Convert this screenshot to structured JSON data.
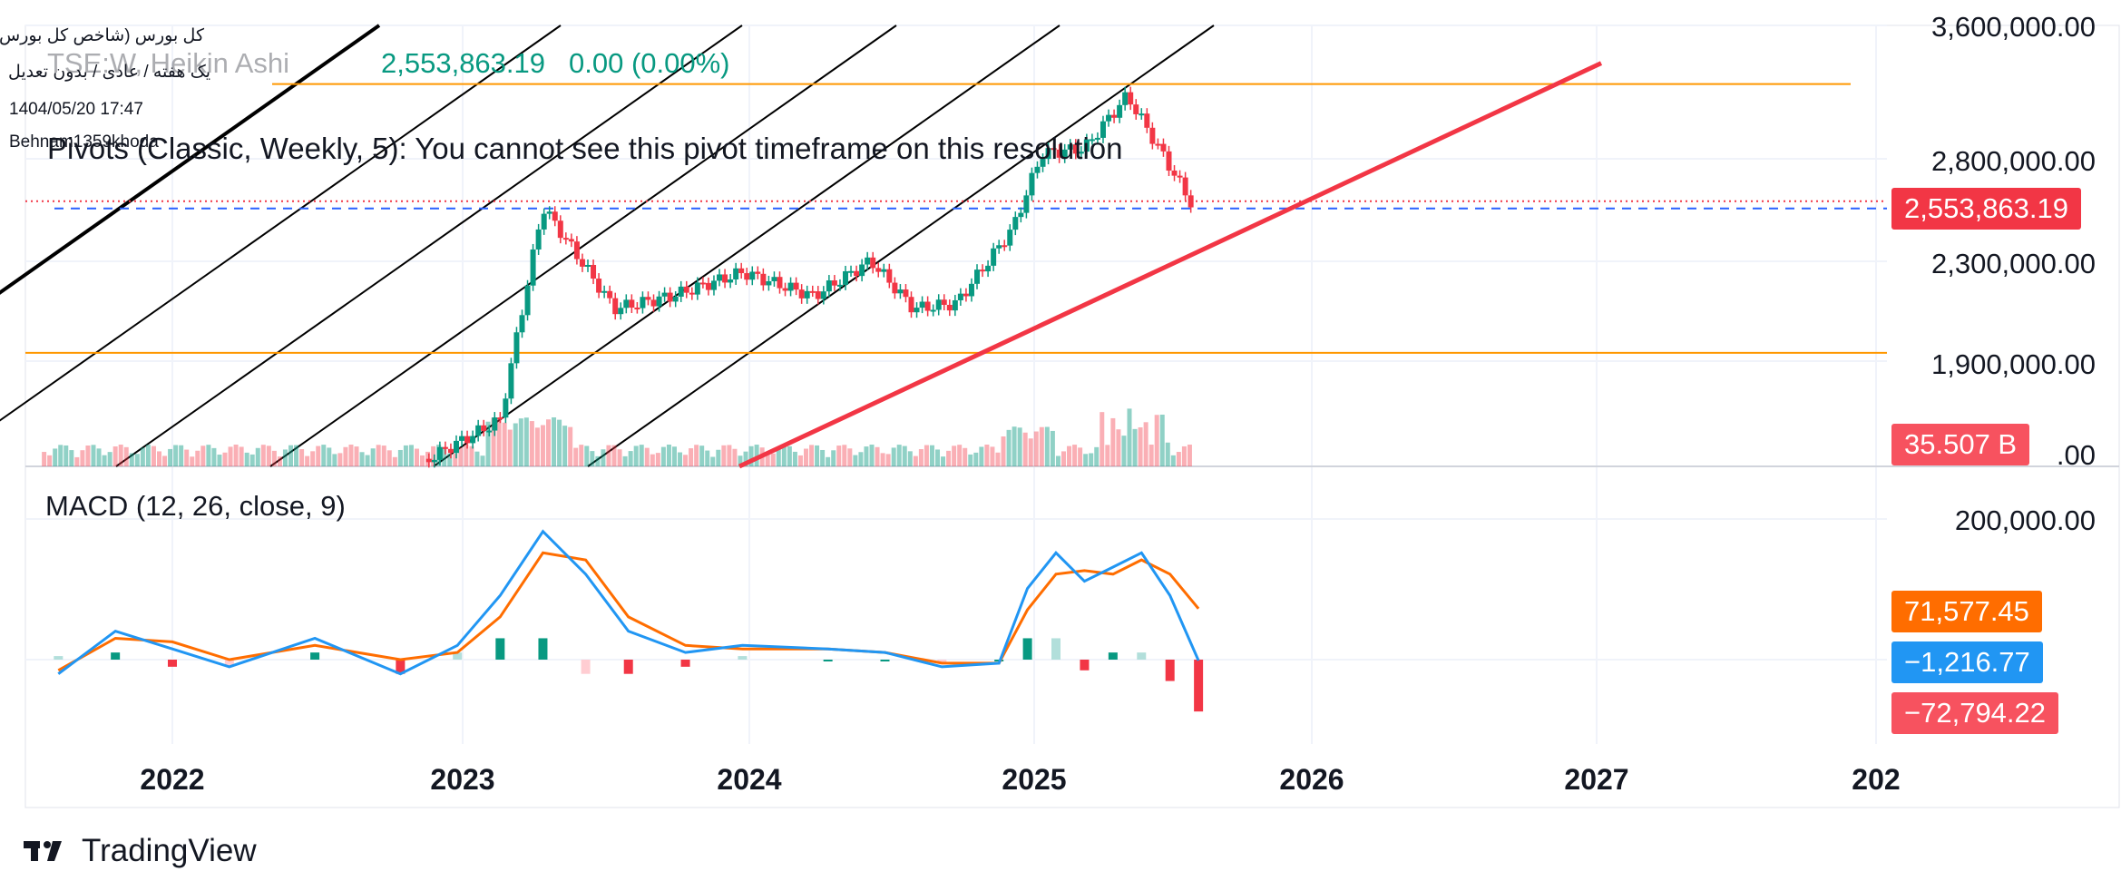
{
  "header": {
    "symbol_line": "کل بورس (شاخص کل بورس)",
    "settings_line": "یک هفته / عادی / بدون تعدیل",
    "timestamp": "1404/05/20 17:47",
    "author": "Behnam1359khoda"
  },
  "legend": {
    "title": "TSE:W, Heikin Ashi",
    "price": "2,553,863.19",
    "change": "0.00 (0.00%)"
  },
  "pivot_note": "Pivots (Classic, Weekly, 5): You cannot see this pivot timeframe on this resolution",
  "macd": {
    "title": "MACD (12, 26, close, 9)"
  },
  "badges": {
    "last_price": "2,553,863.19",
    "volume": "35.507 B",
    "signal": "71,577.45",
    "macd_value": "−1,216.77",
    "histogram": "−72,794.22"
  },
  "colors": {
    "up": "#089981",
    "down": "#f23645",
    "macd_line": "#2196f3",
    "signal_line": "#ff6d00",
    "trendline": "#f23645",
    "horizontal_lines": "#ff9800",
    "channel_lines": "#000000"
  },
  "brand": "TradingView",
  "chart_data": [
    {
      "type": "candlestick",
      "title": "TSE:W, Heikin Ashi",
      "x_axis_ticks": [
        "2022",
        "2023",
        "2024",
        "2025",
        "2026",
        "2027",
        "202"
      ],
      "y_axis_ticks": [
        "3,600,000.00",
        "2,800,000.00",
        "2,300,000.00",
        "1,900,000.00"
      ],
      "y_scale": "log",
      "last_price": 2553863.19,
      "horizontal_levels": [
        3220000,
        1930000
      ],
      "trendline": {
        "from": [
          "2022-10",
          1200000
        ],
        "to": [
          "2025-10",
          2570000
        ]
      },
      "price_path_x": [
        2022.5,
        2023.15,
        2023.3,
        2023.55,
        2023.75,
        2024.0,
        2024.25,
        2024.45,
        2024.6,
        2024.75,
        2024.95,
        2025.05,
        2025.2,
        2025.35,
        2025.5,
        2025.58
      ],
      "price_path_y": [
        1400000,
        1700000,
        2550000,
        2100000,
        2150000,
        2250000,
        2150000,
        2300000,
        2100000,
        2120000,
        2450000,
        2820000,
        2850000,
        3150000,
        2750000,
        2553863
      ]
    },
    {
      "type": "bar",
      "title": "Volume",
      "last_value": "35.507 B"
    },
    {
      "type": "line",
      "title": "MACD (12, 26, close, 9)",
      "y_axis_ticks": [
        "200,000.00"
      ],
      "x": [
        2021.6,
        2021.8,
        2022.0,
        2022.2,
        2022.5,
        2022.8,
        2023.0,
        2023.15,
        2023.3,
        2023.45,
        2023.6,
        2023.8,
        2024.0,
        2024.3,
        2024.5,
        2024.7,
        2024.9,
        2025.0,
        2025.1,
        2025.2,
        2025.3,
        2025.4,
        2025.5,
        2025.6
      ],
      "series": [
        {
          "name": "MACD",
          "values": [
            -20000,
            40000,
            15000,
            -10000,
            30000,
            -20000,
            20000,
            90000,
            180000,
            120000,
            40000,
            10000,
            20000,
            15000,
            10000,
            -10000,
            -5000,
            100000,
            150000,
            110000,
            130000,
            150000,
            90000,
            -1216.77
          ]
        },
        {
          "name": "Signal",
          "values": [
            -15000,
            30000,
            25000,
            0,
            20000,
            0,
            10000,
            60000,
            150000,
            140000,
            60000,
            20000,
            15000,
            15000,
            10000,
            -5000,
            -5000,
            70000,
            120000,
            125000,
            120000,
            140000,
            120000,
            71577.45
          ]
        },
        {
          "name": "Histogram",
          "values": [
            5000,
            10000,
            -10000,
            -10000,
            10000,
            -20000,
            10000,
            30000,
            30000,
            -20000,
            -20000,
            -10000,
            5000,
            0,
            0,
            -5000,
            0,
            30000,
            30000,
            -15000,
            10000,
            10000,
            -30000,
            -72794.22
          ]
        }
      ]
    }
  ]
}
